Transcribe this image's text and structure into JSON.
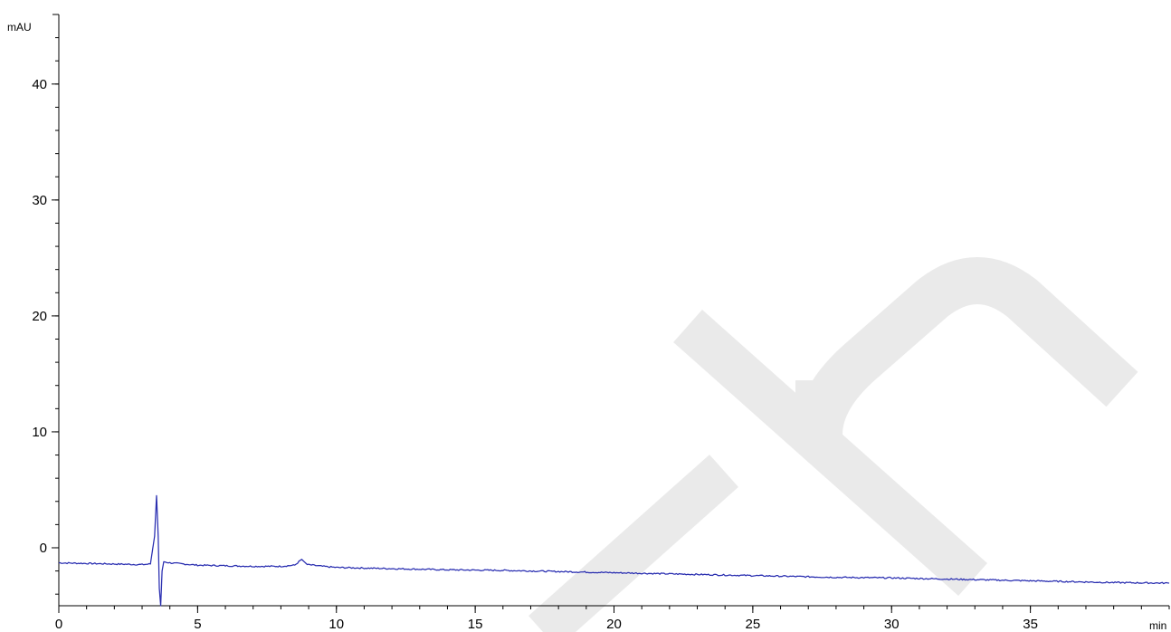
{
  "chart_data": {
    "type": "line",
    "title": "",
    "ylabel": "mAU",
    "xlabel": "min",
    "xlim": [
      0,
      40
    ],
    "ylim": [
      -5,
      46
    ],
    "x_ticks": [
      0,
      5,
      10,
      15,
      20,
      25,
      30,
      35
    ],
    "x_minor_step": 1,
    "y_ticks": [
      0,
      10,
      20,
      30,
      40
    ],
    "y_minor_step": 2,
    "grid": false,
    "colors": {
      "trace": "#3a3fc8",
      "trace_dark": "#1a1e8c",
      "axis": "#000000",
      "watermark": "#cfcfcf"
    },
    "series": [
      {
        "values": [
          [
            0,
            -1.3
          ],
          [
            1.0,
            -1.35
          ],
          [
            2.0,
            -1.4
          ],
          [
            3.0,
            -1.45
          ],
          [
            3.3,
            -1.4
          ],
          [
            3.45,
            1.0
          ],
          [
            3.52,
            4.5
          ],
          [
            3.58,
            1.0
          ],
          [
            3.62,
            -3.5
          ],
          [
            3.67,
            -5.0
          ],
          [
            3.72,
            -2.0
          ],
          [
            3.78,
            -1.2
          ],
          [
            4.0,
            -1.3
          ],
          [
            5.0,
            -1.5
          ],
          [
            6.0,
            -1.55
          ],
          [
            7.0,
            -1.6
          ],
          [
            8.0,
            -1.6
          ],
          [
            8.5,
            -1.5
          ],
          [
            8.75,
            -1.0
          ],
          [
            8.95,
            -1.45
          ],
          [
            9.5,
            -1.6
          ],
          [
            10.0,
            -1.7
          ],
          [
            12.0,
            -1.8
          ],
          [
            14.0,
            -1.9
          ],
          [
            16.0,
            -1.95
          ],
          [
            18.0,
            -2.05
          ],
          [
            20.0,
            -2.15
          ],
          [
            22.0,
            -2.25
          ],
          [
            24.0,
            -2.35
          ],
          [
            26.0,
            -2.45
          ],
          [
            28.0,
            -2.55
          ],
          [
            30.0,
            -2.6
          ],
          [
            32.0,
            -2.7
          ],
          [
            34.0,
            -2.8
          ],
          [
            36.0,
            -2.9
          ],
          [
            38.0,
            -3.0
          ],
          [
            40.0,
            -3.05
          ]
        ]
      }
    ]
  }
}
